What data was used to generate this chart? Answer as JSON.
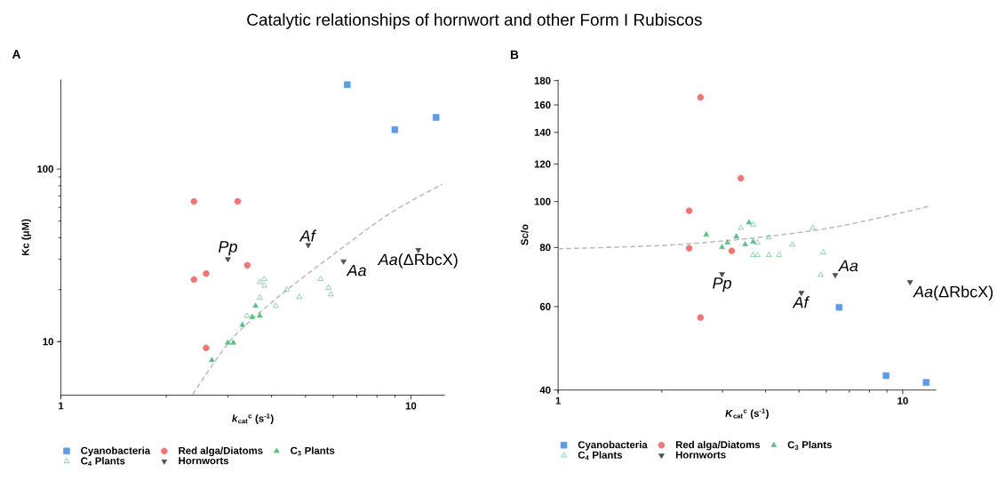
{
  "chart_data": [
    {
      "type": "scatter",
      "title": "A",
      "xlabel": "*k*$_{cat}$$^{c}$ (s$^{-1}$)",
      "ylabel": "Kc (μM)",
      "log": "xy",
      "legend": "bottom",
      "xlim": [
        1,
        12.5
      ],
      "ylim": [
        4.9,
        330
      ],
      "xticks": [
        1,
        10
      ],
      "yticks": [
        10,
        100
      ],
      "annotations": [
        "Catalytic relationships of hornwort and other Form I Rubiscos",
        {
          "text": "*Pp*",
          "x": 3.0,
          "y": 30.1
        },
        {
          "text": "*Af*",
          "x": 5.09,
          "y": 36.3
        },
        {
          "text": "*Aa*",
          "x": 6.42,
          "y": 29.2
        },
        {
          "text": "*Aa*(ΔRbcX)",
          "x": 10.5,
          "y": 34.0
        }
      ],
      "series": [
        {
          "name": "Cyanobacteria",
          "color": "#5b9bea",
          "marker": "square",
          "x": [
            6.58,
            9.0,
            11.8
          ],
          "values": [
            308,
            169,
            199
          ]
        },
        {
          "name": "Red alga/Diatoms",
          "color": "#f07575",
          "marker": "circle",
          "x": [
            2.4,
            3.2,
            3.41,
            2.6,
            2.4,
            2.6
          ],
          "values": [
            64.9,
            65,
            27.7,
            24.8,
            22.9,
            9.2
          ]
        },
        {
          "name": "C$_{3}$ Plants",
          "color": "#5cbf85",
          "marker": "triangle",
          "x": [
            2.7,
            3.0,
            3.11,
            3.3,
            3.52,
            3.7,
            3.6
          ],
          "values": [
            7.8,
            9.85,
            9.85,
            12.5,
            13.9,
            14.1,
            16.1
          ]
        },
        {
          "name": "C$_{4}$ Plants",
          "color": "#5cbf85",
          "marker": "triangle-open",
          "x": [
            3.4,
            3.7,
            3.7,
            3.81,
            3.81,
            4.11,
            4.42,
            4.8,
            5.52,
            5.81,
            5.91
          ],
          "values": [
            14.1,
            18.0,
            22.1,
            23.0,
            21.1,
            16.1,
            20.0,
            18.1,
            23.1,
            20.5,
            18.8
          ]
        },
        {
          "name": "Hornworts",
          "color": "#505050",
          "marker": "triangle-down",
          "x": [
            3.0,
            5.09,
            6.42,
            10.5
          ],
          "values": [
            30.1,
            36.3,
            29.2,
            34.0
          ]
        },
        {
          "type": "line",
          "color": "#bbbbbb",
          "line_style": "dashed",
          "marker": "none",
          "x": [
            2.38,
            3.07,
            4.13,
            5.98,
            8.67,
            12.3
          ],
          "values": [
            4.95,
            10.3,
            17.8,
            31.8,
            55.0,
            81.7
          ]
        }
      ]
    },
    {
      "type": "scatter",
      "title": "B",
      "xlabel": "*K*$_{cat}$$^{c}$ (s$^{-1}$)",
      "ylabel": "Sc/o",
      "log": "xy",
      "legend": "bottom",
      "xlim": [
        1,
        12.5
      ],
      "ylim": [
        40,
        181
      ],
      "xticks": [
        1,
        10
      ],
      "yticks": [
        40,
        60,
        80,
        100,
        120,
        140,
        160,
        180
      ],
      "annotations": [
        {
          "text": "*Pp*",
          "x": 2.99,
          "y": 70.3
        },
        {
          "text": "*Af*",
          "x": 5.08,
          "y": 64.2
        },
        {
          "text": "*Aa*",
          "x": 6.37,
          "y": 70.0
        },
        {
          "text": "*Aa*(ΔRbcX)",
          "x": 10.5,
          "y": 67.6
        }
      ],
      "series": [
        {
          "name": "Cyanobacteria",
          "color": "#5b9bea",
          "marker": "square",
          "x": [
            6.54,
            8.95,
            11.7
          ],
          "values": [
            59.8,
            42.9,
            41.5
          ]
        },
        {
          "name": "Red alga/Diatoms",
          "color": "#f07575",
          "marker": "circle",
          "x": [
            2.59,
            3.39,
            2.4,
            2.4,
            3.19,
            2.59
          ],
          "values": [
            166,
            112,
            95.6,
            79.7,
            78.7,
            56.9
          ]
        },
        {
          "name": "C$_{3}$ Plants",
          "color": "#5cbf85",
          "marker": "triangle",
          "x": [
            2.69,
            2.99,
            3.1,
            3.29,
            3.49,
            3.58,
            3.68
          ],
          "values": [
            85.1,
            80.1,
            81.9,
            84.3,
            81.2,
            90.3,
            82.2
          ]
        },
        {
          "name": "C$_{4}$ Plants",
          "color": "#5cbf85",
          "marker": "triangle-open",
          "x": [
            3.39,
            3.68,
            3.79,
            3.68,
            3.79,
            4.09,
            4.09,
            4.38,
            4.78,
            5.48,
            5.88,
            5.78
          ],
          "values": [
            88.0,
            89.3,
            81.9,
            77.1,
            77.1,
            84.0,
            77.1,
            77.1,
            81.1,
            88.0,
            78.1,
            70.0
          ]
        },
        {
          "name": "Hornworts",
          "color": "#505050",
          "marker": "triangle-down",
          "x": [
            2.99,
            5.08,
            6.37,
            10.5
          ],
          "values": [
            70.3,
            64.2,
            70.0,
            67.6
          ]
        },
        {
          "type": "line",
          "color": "#bbbbbb",
          "line_style": "dashed",
          "marker": "none",
          "x": [
            1,
            2.08,
            3.65,
            6.41,
            11.9
          ],
          "values": [
            79.5,
            80.9,
            83.7,
            88.4,
            97.7
          ]
        }
      ]
    }
  ]
}
